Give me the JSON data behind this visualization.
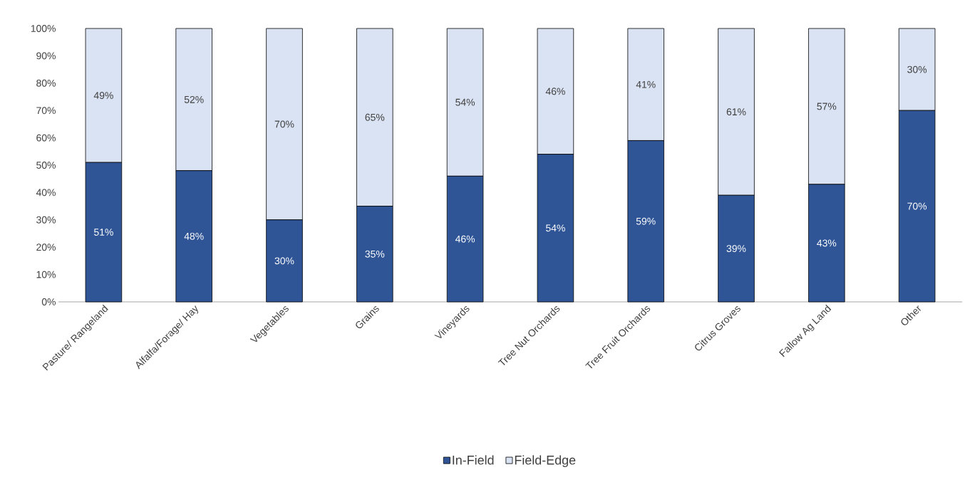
{
  "chart_data": {
    "type": "bar",
    "stacked": true,
    "categories": [
      "Pasture/ Rangeland",
      "Alfalfa/Forage/ Hay",
      "Vegetables",
      "Grains",
      "Vineyards",
      "Tree Nut Orchards",
      "Tree Fruit Orchards",
      "Citrus Groves",
      "Fallow Ag Land",
      "Other"
    ],
    "series": [
      {
        "name": "In-Field",
        "color": "#2f5597",
        "values": [
          51,
          48,
          30,
          35,
          46,
          54,
          59,
          39,
          43,
          70
        ],
        "value_labels": [
          "51%",
          "48%",
          "30%",
          "35%",
          "46%",
          "54%",
          "59%",
          "39%",
          "43%",
          "70%"
        ]
      },
      {
        "name": "Field-Edge",
        "color": "#dae3f3",
        "values": [
          49,
          52,
          70,
          65,
          54,
          46,
          41,
          61,
          57,
          30
        ],
        "value_labels": [
          "49%",
          "52%",
          "70%",
          "65%",
          "54%",
          "46%",
          "41%",
          "61%",
          "57%",
          "30%"
        ]
      }
    ],
    "ylim": [
      0,
      100
    ],
    "yticks": [
      {
        "value": 0,
        "label": "0%"
      },
      {
        "value": 10,
        "label": "10%"
      },
      {
        "value": 20,
        "label": "20%"
      },
      {
        "value": 30,
        "label": "30%"
      },
      {
        "value": 40,
        "label": "40%"
      },
      {
        "value": 50,
        "label": "50%"
      },
      {
        "value": 60,
        "label": "60%"
      },
      {
        "value": 70,
        "label": "70%"
      },
      {
        "value": 80,
        "label": "80%"
      },
      {
        "value": 90,
        "label": "90%"
      },
      {
        "value": 100,
        "label": "100%"
      }
    ],
    "grid": false,
    "legend": "bottom"
  }
}
